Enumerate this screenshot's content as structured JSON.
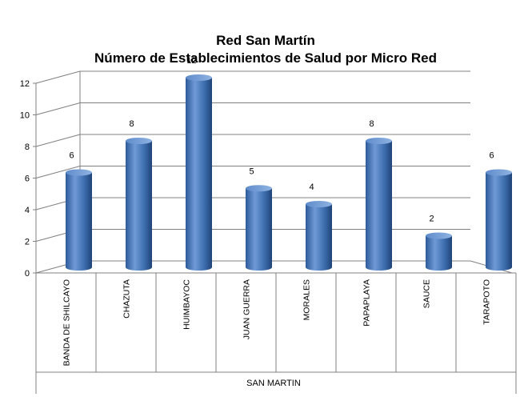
{
  "chart_data": {
    "type": "bar",
    "title": "Red San Martín",
    "subtitle": "Número de Establecimientos de Salud por Micro Red",
    "categories": [
      "BANDA DE SHILCAYO",
      "CHAZUTA",
      "HUIMBAYOC",
      "JUAN GUERRA",
      "MORALES",
      "PAPAPLAYA",
      "SAUCE",
      "TARAPOTO"
    ],
    "values": [
      6,
      8,
      12,
      5,
      4,
      8,
      2,
      6
    ],
    "group_label": "SAN MARTIN",
    "ylim": [
      0,
      12
    ],
    "yticks": [
      0,
      2,
      4,
      6,
      8,
      10,
      12
    ],
    "grid": true,
    "legend": "none",
    "bar_color": "#4a7ebf"
  }
}
